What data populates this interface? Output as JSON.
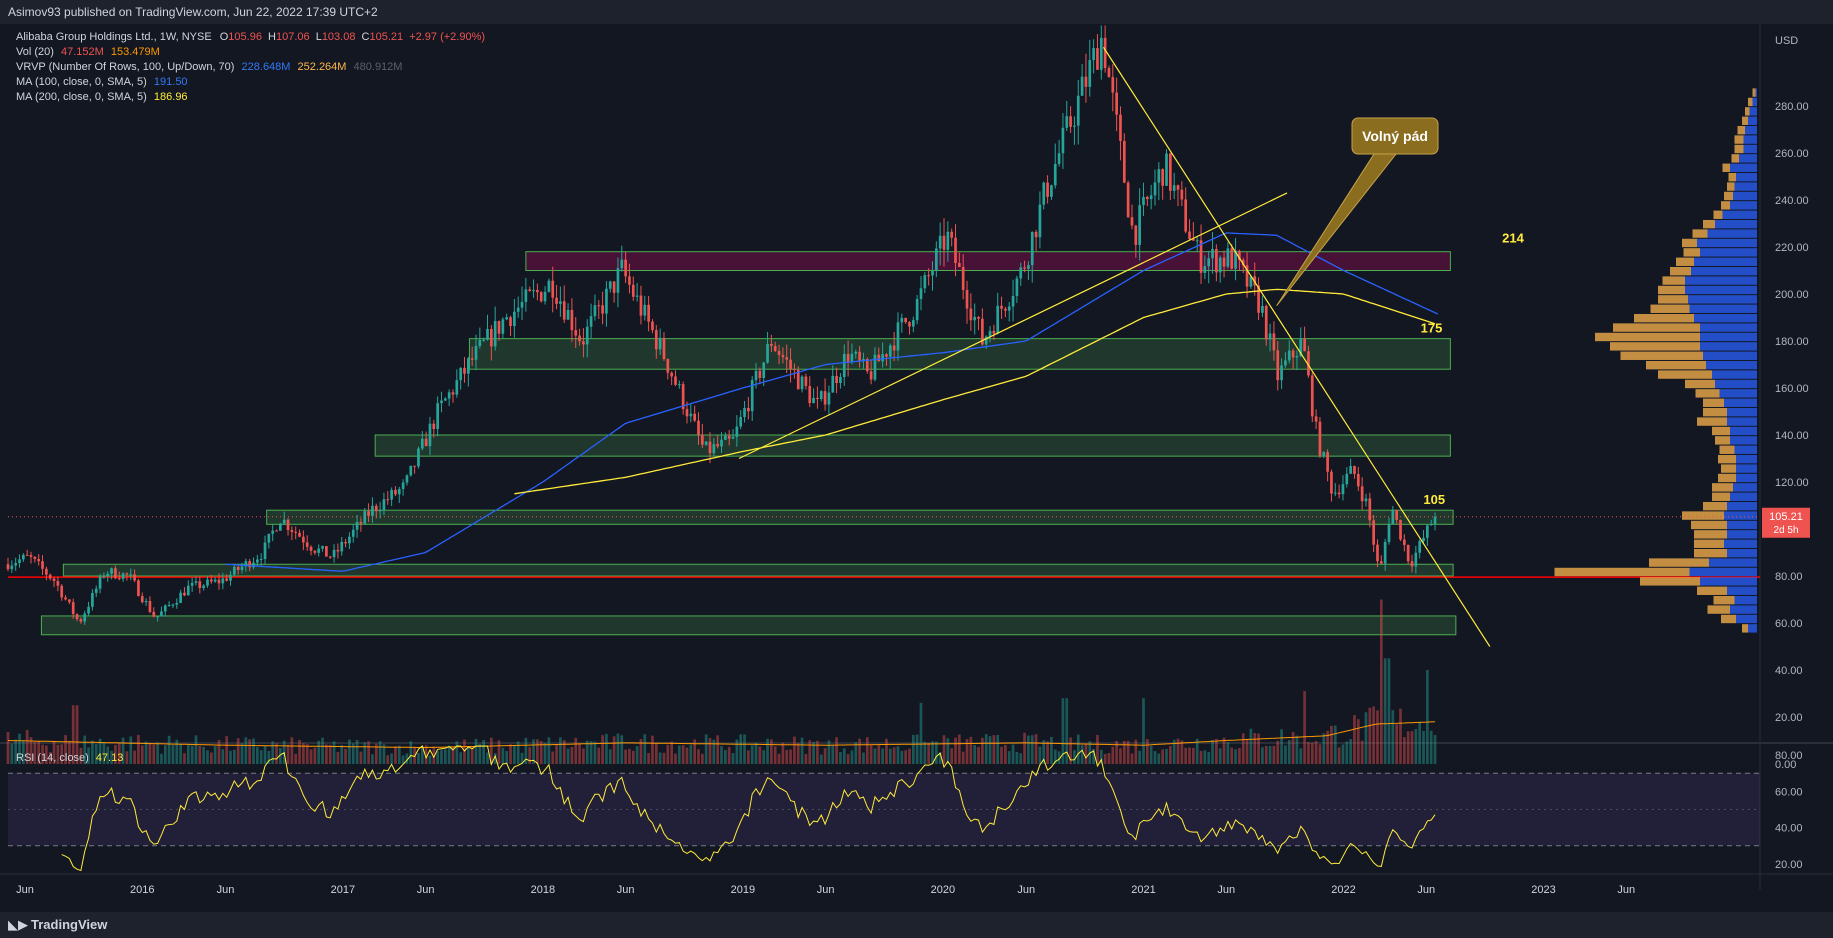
{
  "header": {
    "published": "Asimov93 published on TradingView.com, Jun 22, 2022 17:39 UTC+2"
  },
  "legend": {
    "symbol": "Alibaba Group Holdings Ltd., 1W, NYSE",
    "ohlc": {
      "o_label": "O",
      "o": "105.96",
      "h_label": "H",
      "h": "107.06",
      "l_label": "L",
      "l": "103.08",
      "c_label": "C",
      "c": "105.21",
      "change": "+2.97 (+2.90%)"
    },
    "vol": {
      "label": "Vol (20)",
      "v1": "47.152M",
      "v2": "153.479M"
    },
    "vrvp": {
      "label": "VRVP (Number Of Rows, 100, Up/Down, 70)",
      "v1": "228.648M",
      "v2": "252.264M",
      "v3": "480.912M"
    },
    "ma100": {
      "label": "MA (100, close, 0, SMA, 5)",
      "value": "191.50"
    },
    "ma200": {
      "label": "MA (200, close, 0, SMA, 5)",
      "value": "186.96"
    },
    "rsi": {
      "label": "RSI (14, close)",
      "value": "47.13"
    }
  },
  "price_tag": {
    "value": "105.21",
    "countdown": "2d 5h"
  },
  "annotation": "Volný pád",
  "colors": {
    "background": "#131722",
    "up": "#26a69a",
    "down": "#ef5350",
    "ma100": "#2962ff",
    "ma200": "#ffeb3b",
    "rsi": "#ffeb3b",
    "zone_green": "#4caf50",
    "zone_red": "#880e4f",
    "support": "#ff0000",
    "callout": "#8a6d1f"
  },
  "watermark": "TradingView",
  "chart_data": [
    {
      "type": "candlestick",
      "title": "Alibaba Group Holdings Ltd., 1W, NYSE",
      "ylabel": "USD",
      "ylim": [
        -8,
        300
      ],
      "yticks": [
        0,
        20,
        40,
        60,
        80,
        100,
        120,
        140,
        160,
        180,
        200,
        220,
        240,
        260,
        280
      ],
      "yticklabels": [
        "0.00",
        "20.00",
        "40.00",
        "60.00",
        "80.00",
        "100.00",
        "120.00",
        "140.00",
        "160.00",
        "180.00",
        "200.00",
        "220.00",
        "240.00",
        "260.00",
        "280.00"
      ],
      "xlim": [
        "2015-05-01",
        "2024-01-31"
      ],
      "xticklabels": [
        "Jun",
        "2016",
        "Jun",
        "2017",
        "Jun",
        "2018",
        "Jun",
        "2019",
        "Jun",
        "2020",
        "Jun",
        "2021",
        "Jun",
        "2022",
        "Jun",
        "2023",
        "Jun"
      ],
      "xtick_dates": [
        "2015-06-01",
        "2016-01-01",
        "2016-06-01",
        "2017-01-01",
        "2017-06-01",
        "2018-01-01",
        "2018-06-01",
        "2019-01-01",
        "2019-06-01",
        "2020-01-01",
        "2020-06-01",
        "2021-01-01",
        "2021-06-01",
        "2022-01-01",
        "2022-06-01",
        "2023-01-01",
        "2023-06-01"
      ],
      "price_keypoints": [
        [
          "2015-05-01",
          85
        ],
        [
          "2015-06-15",
          88
        ],
        [
          "2015-08-01",
          78
        ],
        [
          "2015-09-15",
          60
        ],
        [
          "2015-11-01",
          82
        ],
        [
          "2015-12-15",
          80
        ],
        [
          "2016-02-01",
          62
        ],
        [
          "2016-04-01",
          75
        ],
        [
          "2016-06-01",
          78
        ],
        [
          "2016-08-15",
          90
        ],
        [
          "2016-09-15",
          105
        ],
        [
          "2016-11-15",
          92
        ],
        [
          "2016-12-20",
          88
        ],
        [
          "2017-03-01",
          108
        ],
        [
          "2017-05-01",
          118
        ],
        [
          "2017-07-01",
          150
        ],
        [
          "2017-09-01",
          172
        ],
        [
          "2017-11-01",
          190
        ],
        [
          "2018-01-25",
          205
        ],
        [
          "2018-03-20",
          180
        ],
        [
          "2018-06-01",
          210
        ],
        [
          "2018-08-15",
          175
        ],
        [
          "2018-10-30",
          133
        ],
        [
          "2018-12-20",
          137
        ],
        [
          "2019-03-01",
          180
        ],
        [
          "2019-05-25",
          152
        ],
        [
          "2019-07-20",
          175
        ],
        [
          "2019-08-25",
          165
        ],
        [
          "2019-11-20",
          195
        ],
        [
          "2020-01-15",
          225
        ],
        [
          "2020-03-20",
          180
        ],
        [
          "2020-06-01",
          210
        ],
        [
          "2020-07-15",
          245
        ],
        [
          "2020-10-25",
          310
        ],
        [
          "2020-12-20",
          225
        ],
        [
          "2021-02-15",
          255
        ],
        [
          "2021-04-20",
          215
        ],
        [
          "2021-06-20",
          215
        ],
        [
          "2021-08-10",
          195
        ],
        [
          "2021-09-10",
          165
        ],
        [
          "2021-10-25",
          180
        ],
        [
          "2021-11-20",
          140
        ],
        [
          "2021-12-20",
          115
        ],
        [
          "2022-01-25",
          125
        ],
        [
          "2022-02-20",
          110
        ],
        [
          "2022-03-15",
          80
        ],
        [
          "2022-04-05",
          110
        ],
        [
          "2022-05-10",
          85
        ],
        [
          "2022-06-22",
          105
        ]
      ],
      "last_close": 105.21,
      "ma100_keypoints": [
        [
          "2016-06-01",
          85
        ],
        [
          "2017-01-01",
          82
        ],
        [
          "2017-06-01",
          90
        ],
        [
          "2018-01-01",
          120
        ],
        [
          "2018-06-01",
          145
        ],
        [
          "2019-01-01",
          160
        ],
        [
          "2019-06-01",
          170
        ],
        [
          "2020-01-01",
          175
        ],
        [
          "2020-06-01",
          180
        ],
        [
          "2021-01-01",
          210
        ],
        [
          "2021-06-01",
          226
        ],
        [
          "2021-09-01",
          225
        ],
        [
          "2022-01-01",
          210
        ],
        [
          "2022-06-22",
          191.5
        ]
      ],
      "ma200_keypoints": [
        [
          "2017-11-10",
          115
        ],
        [
          "2018-06-01",
          122
        ],
        [
          "2019-01-01",
          133
        ],
        [
          "2019-06-01",
          140
        ],
        [
          "2020-01-01",
          155
        ],
        [
          "2020-06-01",
          165
        ],
        [
          "2021-01-01",
          190
        ],
        [
          "2021-06-01",
          200
        ],
        [
          "2021-09-01",
          202
        ],
        [
          "2022-01-01",
          200
        ],
        [
          "2022-06-22",
          186.96
        ]
      ],
      "zones": [
        {
          "color": "red",
          "from": "2017-12-01",
          "to": "2022-07-15",
          "low": 210,
          "high": 218
        },
        {
          "color": "green",
          "label": "175",
          "from": "2017-08-20",
          "to": "2022-07-15",
          "low": 168,
          "high": 181
        },
        {
          "color": "green",
          "from": "2017-03-01",
          "to": "2022-07-15",
          "low": 131,
          "high": 140
        },
        {
          "color": "green",
          "label": "105",
          "from": "2016-08-15",
          "to": "2022-07-20",
          "low": 102,
          "high": 108
        },
        {
          "color": "green",
          "from": "2015-08-10",
          "to": "2022-07-20",
          "low": 80,
          "high": 85
        },
        {
          "color": "green",
          "from": "2015-07-01",
          "to": "2022-07-25",
          "low": 55,
          "high": 63
        }
      ],
      "zone_label_214": "214",
      "support_line": 79.5,
      "trendlines": [
        {
          "name": "uptrend",
          "from": [
            "2018-12-25",
            130
          ],
          "to": [
            "2021-09-20",
            243
          ]
        },
        {
          "name": "downtrend",
          "from": [
            "2020-10-20",
            305
          ],
          "to": [
            "2022-09-25",
            50
          ]
        }
      ],
      "vrvp_rows": [
        [
          284,
          2,
          1
        ],
        [
          280,
          3,
          3
        ],
        [
          276,
          3,
          5
        ],
        [
          272,
          4,
          6
        ],
        [
          268,
          5,
          8
        ],
        [
          264,
          6,
          9
        ],
        [
          260,
          6,
          9
        ],
        [
          256,
          5,
          12
        ],
        [
          252,
          5,
          18
        ],
        [
          248,
          5,
          14
        ],
        [
          244,
          5,
          15
        ],
        [
          240,
          6,
          16
        ],
        [
          236,
          6,
          18
        ],
        [
          232,
          6,
          23
        ],
        [
          228,
          8,
          28
        ],
        [
          224,
          10,
          33
        ],
        [
          220,
          10,
          40
        ],
        [
          216,
          11,
          38
        ],
        [
          212,
          12,
          42
        ],
        [
          208,
          14,
          44
        ],
        [
          204,
          15,
          48
        ],
        [
          200,
          18,
          48
        ],
        [
          196,
          20,
          46
        ],
        [
          192,
          26,
          45
        ],
        [
          188,
          40,
          42
        ],
        [
          184,
          58,
          38
        ],
        [
          180,
          70,
          38
        ],
        [
          176,
          60,
          38
        ],
        [
          172,
          55,
          36
        ],
        [
          168,
          40,
          34
        ],
        [
          164,
          36,
          30
        ],
        [
          160,
          20,
          28
        ],
        [
          156,
          16,
          25
        ],
        [
          152,
          14,
          22
        ],
        [
          148,
          16,
          20
        ],
        [
          144,
          20,
          20
        ],
        [
          140,
          12,
          18
        ],
        [
          136,
          10,
          18
        ],
        [
          132,
          10,
          15
        ],
        [
          128,
          12,
          14
        ],
        [
          124,
          10,
          14
        ],
        [
          120,
          12,
          14
        ],
        [
          116,
          14,
          16
        ],
        [
          112,
          12,
          18
        ],
        [
          108,
          16,
          20
        ],
        [
          104,
          28,
          22
        ],
        [
          100,
          24,
          20
        ],
        [
          96,
          22,
          20
        ],
        [
          92,
          20,
          22
        ],
        [
          88,
          22,
          20
        ],
        [
          84,
          40,
          32
        ],
        [
          80,
          90,
          45
        ],
        [
          76,
          40,
          38
        ],
        [
          72,
          20,
          20
        ],
        [
          68,
          14,
          15
        ],
        [
          64,
          15,
          18
        ],
        [
          60,
          10,
          14
        ],
        [
          56,
          4,
          6
        ]
      ]
    },
    {
      "type": "bar",
      "title": "Vol (20)",
      "volume_spikes": [
        [
          "2022-03-15",
          70
        ],
        [
          "2022-03-22",
          45
        ],
        [
          "2022-06-01",
          40
        ],
        [
          "2021-10-20",
          31
        ],
        [
          "2020-08-10",
          28
        ],
        [
          "2021-01-01",
          28
        ],
        [
          "2019-11-20",
          26
        ],
        [
          "2015-09-01",
          25
        ]
      ],
      "volume_ma_keypoints": [
        [
          "2015-05-01",
          10
        ],
        [
          "2016-06-01",
          8
        ],
        [
          "2017-06-01",
          7
        ],
        [
          "2018-06-01",
          9
        ],
        [
          "2019-06-01",
          8
        ],
        [
          "2020-06-01",
          9
        ],
        [
          "2021-01-01",
          8
        ],
        [
          "2021-06-01",
          10
        ],
        [
          "2021-12-01",
          12
        ],
        [
          "2022-03-01",
          17
        ],
        [
          "2022-06-22",
          18
        ]
      ]
    },
    {
      "type": "line",
      "title": "RSI (14, close)",
      "ylim": [
        15,
        85
      ],
      "yticks": [
        20,
        40,
        60,
        80
      ],
      "yticklabels": [
        "20.00",
        "40.00",
        "60.00",
        "80.00"
      ],
      "bands": [
        30,
        70
      ],
      "last": 47.13
    }
  ]
}
